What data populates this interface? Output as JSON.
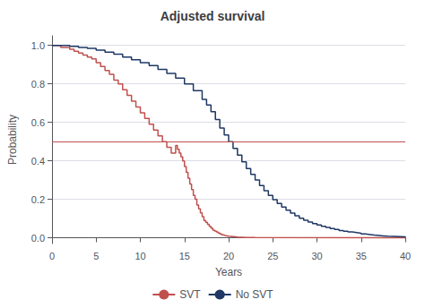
{
  "chart_data": {
    "type": "line",
    "line_style": "step",
    "title": "Adjusted survival",
    "xlabel": "Years",
    "ylabel": "Probability",
    "xlim": [
      0,
      40
    ],
    "ylim": [
      -0.03,
      1.05
    ],
    "xticks": [
      0,
      5,
      10,
      15,
      20,
      25,
      30,
      35,
      40
    ],
    "yticks": [
      {
        "value": 0.0,
        "label": "0.0"
      },
      0.2,
      0.4,
      0.6,
      0.8,
      {
        "value": 1.0,
        "label": "1.0"
      }
    ],
    "grid": true,
    "legend": "bottom",
    "reference_line": {
      "y": 0.5,
      "color": "#c0504d"
    },
    "series": [
      {
        "name": "SVT",
        "color": "#c0504d",
        "x": [
          0,
          0.5,
          1,
          1.5,
          2,
          2.5,
          3,
          3.5,
          4,
          4.5,
          5,
          5.5,
          6,
          6.5,
          7,
          7.5,
          8,
          8.5,
          9,
          9.5,
          10,
          10.5,
          11,
          11.5,
          12,
          12.5,
          13,
          13.5,
          14,
          14.2,
          14.4,
          14.6,
          14.8,
          15,
          15.2,
          15.4,
          15.6,
          15.8,
          16,
          16.2,
          16.4,
          16.6,
          16.8,
          17,
          17.2,
          17.4,
          17.6,
          17.8,
          18,
          18.2,
          18.4,
          18.6,
          18.8,
          19,
          19.2,
          19.4,
          19.6,
          19.8,
          20,
          20.5,
          21,
          21.5,
          22,
          23,
          40
        ],
        "values": [
          1.0,
          1.0,
          0.99,
          0.99,
          0.98,
          0.97,
          0.96,
          0.95,
          0.94,
          0.93,
          0.91,
          0.89,
          0.87,
          0.85,
          0.82,
          0.8,
          0.77,
          0.74,
          0.71,
          0.68,
          0.65,
          0.62,
          0.59,
          0.56,
          0.53,
          0.5,
          0.47,
          0.44,
          0.48,
          0.46,
          0.44,
          0.42,
          0.4,
          0.37,
          0.34,
          0.31,
          0.28,
          0.25,
          0.22,
          0.2,
          0.17,
          0.15,
          0.13,
          0.11,
          0.09,
          0.08,
          0.07,
          0.06,
          0.05,
          0.04,
          0.035,
          0.03,
          0.025,
          0.02,
          0.015,
          0.012,
          0.01,
          0.008,
          0.006,
          0.004,
          0.003,
          0.002,
          0.001,
          0.0,
          0.0
        ]
      },
      {
        "name": "No SVT",
        "color": "#1f3864",
        "x": [
          0,
          1,
          2,
          3,
          4,
          5,
          6,
          7,
          8,
          9,
          10,
          11,
          12,
          13,
          14,
          15,
          16,
          17,
          17.5,
          18,
          18.5,
          19,
          19.5,
          20,
          20.5,
          21,
          21.5,
          22,
          22.5,
          23,
          23.5,
          24,
          24.5,
          25,
          25.5,
          26,
          26.5,
          27,
          27.5,
          28,
          28.5,
          29,
          29.5,
          30,
          30.5,
          31,
          31.5,
          32,
          32.5,
          33,
          33.5,
          34,
          34.5,
          35,
          35.5,
          36,
          36.5,
          37,
          37.5,
          38,
          40
        ],
        "values": [
          1.0,
          1.0,
          0.995,
          0.99,
          0.985,
          0.975,
          0.965,
          0.955,
          0.94,
          0.925,
          0.91,
          0.895,
          0.875,
          0.855,
          0.83,
          0.8,
          0.765,
          0.72,
          0.69,
          0.655,
          0.615,
          0.57,
          0.535,
          0.5,
          0.465,
          0.43,
          0.395,
          0.36,
          0.33,
          0.3,
          0.272,
          0.245,
          0.22,
          0.198,
          0.178,
          0.16,
          0.143,
          0.128,
          0.114,
          0.102,
          0.091,
          0.082,
          0.074,
          0.067,
          0.06,
          0.054,
          0.048,
          0.043,
          0.038,
          0.034,
          0.03,
          0.027,
          0.024,
          0.02,
          0.017,
          0.014,
          0.012,
          0.01,
          0.008,
          0.005,
          0.0
        ]
      }
    ]
  }
}
